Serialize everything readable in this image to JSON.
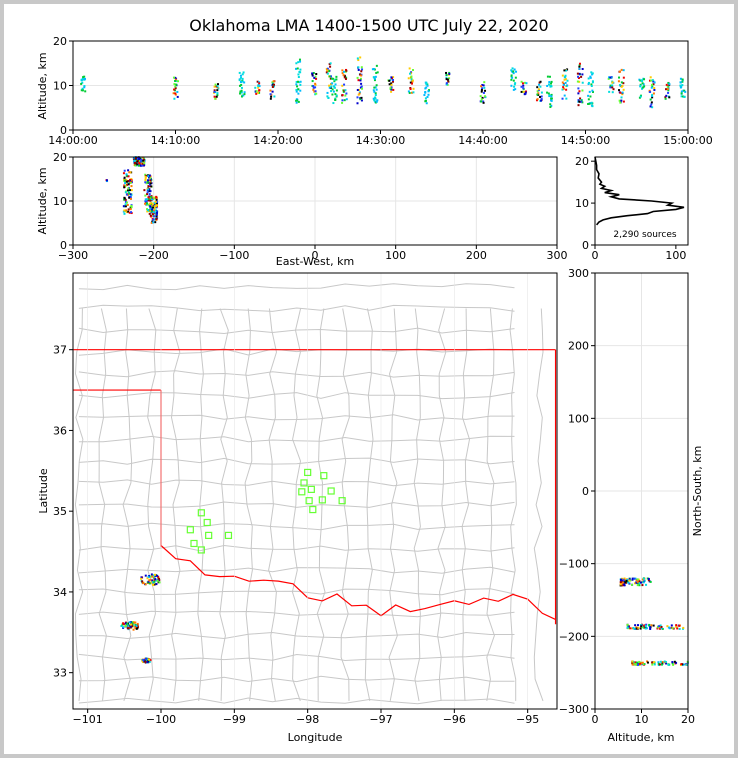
{
  "title": "Oklahoma LMA 1400-1500 UTC July 22, 2020",
  "colors": {
    "state_line": "#ff0000",
    "county_line": "#c8c8c8",
    "station": "#66ff33",
    "grid": "#e6e6e6"
  },
  "chart_data": [
    {
      "id": "time-height",
      "type": "scatter",
      "ylabel": "Altitude, km",
      "ylim": [
        0,
        20
      ],
      "yticks": [
        "0",
        "10",
        "20"
      ],
      "xlim_minutes": [
        0,
        60
      ],
      "xtick_labels": [
        "14:00:00",
        "14:10:00",
        "14:20:00",
        "14:30:00",
        "14:40:00",
        "14:50:00",
        "15:00:00"
      ],
      "note": "VHF sources, altitude (km) vs time (minutes after 14:00 UTC)",
      "clusters": [
        {
          "t": 1,
          "alt": [
            8,
            12
          ]
        },
        {
          "t": 10,
          "alt": [
            7,
            12
          ]
        },
        {
          "t": 14,
          "alt": [
            7,
            11
          ]
        },
        {
          "t": 16.5,
          "alt": [
            6,
            13
          ]
        },
        {
          "t": 18,
          "alt": [
            8,
            11
          ]
        },
        {
          "t": 19.5,
          "alt": [
            7,
            11
          ]
        },
        {
          "t": 22,
          "alt": [
            6,
            16
          ]
        },
        {
          "t": 23.5,
          "alt": [
            8,
            13
          ]
        },
        {
          "t": 25,
          "alt": [
            7,
            15
          ]
        },
        {
          "t": 25.5,
          "alt": [
            6,
            12
          ]
        },
        {
          "t": 26.5,
          "alt": [
            6,
            14
          ]
        },
        {
          "t": 28,
          "alt": [
            6,
            17
          ]
        },
        {
          "t": 29.5,
          "alt": [
            6,
            15
          ]
        },
        {
          "t": 31,
          "alt": [
            8,
            12
          ]
        },
        {
          "t": 33,
          "alt": [
            8,
            14
          ]
        },
        {
          "t": 34.5,
          "alt": [
            6,
            11
          ]
        },
        {
          "t": 36.5,
          "alt": [
            10,
            13
          ]
        },
        {
          "t": 40,
          "alt": [
            6,
            11
          ]
        },
        {
          "t": 43,
          "alt": [
            9,
            14
          ]
        },
        {
          "t": 44,
          "alt": [
            8,
            11
          ]
        },
        {
          "t": 45.5,
          "alt": [
            6,
            11
          ]
        },
        {
          "t": 46.5,
          "alt": [
            5,
            12
          ]
        },
        {
          "t": 48,
          "alt": [
            7,
            15
          ]
        },
        {
          "t": 49.5,
          "alt": [
            5,
            15
          ]
        },
        {
          "t": 50.5,
          "alt": [
            5,
            13
          ]
        },
        {
          "t": 52.5,
          "alt": [
            8,
            12
          ]
        },
        {
          "t": 53.5,
          "alt": [
            6,
            14
          ]
        },
        {
          "t": 55.5,
          "alt": [
            7,
            12
          ]
        },
        {
          "t": 56.5,
          "alt": [
            5,
            12
          ]
        },
        {
          "t": 58,
          "alt": [
            7,
            11
          ]
        },
        {
          "t": 59.5,
          "alt": [
            7,
            12
          ]
        }
      ]
    },
    {
      "id": "ew-height",
      "type": "scatter",
      "xlabel": "East-West, km",
      "ylabel": "Altitude, km",
      "xlim": [
        -300,
        300
      ],
      "ylim": [
        0,
        20
      ],
      "xticks": [
        "−300",
        "−200",
        "−100",
        "0",
        "100",
        "200",
        "300"
      ],
      "yticks": [
        "0",
        "10",
        "20"
      ],
      "clusters": [
        {
          "x": -232,
          "alt": [
            7,
            17
          ],
          "spread": 10
        },
        {
          "x": -207,
          "alt": [
            7,
            16
          ],
          "spread": 9
        },
        {
          "x": -200,
          "alt": [
            5,
            11
          ],
          "spread": 9
        },
        {
          "x": -258,
          "alt": [
            14.5,
            15
          ],
          "spread": 1
        },
        {
          "x": -218,
          "alt": [
            18,
            20
          ],
          "spread": 14
        }
      ]
    },
    {
      "id": "altitude-histogram",
      "type": "line",
      "annotation": "2,290 sources",
      "xlim": [
        0,
        115
      ],
      "ylim": [
        0,
        21
      ],
      "xticks": [
        "0",
        "100"
      ],
      "yticks": [
        "0",
        "10",
        "20"
      ],
      "profile": [
        {
          "alt": 4.8,
          "n": 2
        },
        {
          "alt": 5.5,
          "n": 5
        },
        {
          "alt": 6,
          "n": 10
        },
        {
          "alt": 6.5,
          "n": 20
        },
        {
          "alt": 7,
          "n": 40
        },
        {
          "alt": 7.5,
          "n": 65
        },
        {
          "alt": 8,
          "n": 72
        },
        {
          "alt": 8.5,
          "n": 100
        },
        {
          "alt": 9,
          "n": 110
        },
        {
          "alt": 9.5,
          "n": 90
        },
        {
          "alt": 10,
          "n": 95
        },
        {
          "alt": 10.5,
          "n": 70
        },
        {
          "alt": 11,
          "n": 30
        },
        {
          "alt": 11.5,
          "n": 20
        },
        {
          "alt": 12,
          "n": 30
        },
        {
          "alt": 12.5,
          "n": 12
        },
        {
          "alt": 13,
          "n": 20
        },
        {
          "alt": 13.5,
          "n": 8
        },
        {
          "alt": 14,
          "n": 12
        },
        {
          "alt": 14.5,
          "n": 6
        },
        {
          "alt": 15,
          "n": 8
        },
        {
          "alt": 16,
          "n": 4
        },
        {
          "alt": 17,
          "n": 5
        },
        {
          "alt": 18,
          "n": 2
        },
        {
          "alt": 19,
          "n": 2
        },
        {
          "alt": 20,
          "n": 1
        },
        {
          "alt": 21,
          "n": 0
        }
      ]
    },
    {
      "id": "plan-map",
      "type": "scatter",
      "xlabel": "Longitude",
      "ylabel": "Latitude",
      "xlim": [
        -101.2,
        -94.6
      ],
      "ylim": [
        32.55,
        37.95
      ],
      "xticks": [
        "−101",
        "−100",
        "−99",
        "−98",
        "−97",
        "−96",
        "−95"
      ],
      "yticks": [
        "33",
        "34",
        "35",
        "36",
        "37"
      ],
      "stations": [
        {
          "lon": -98.0,
          "lat": 35.48
        },
        {
          "lon": -97.78,
          "lat": 35.44
        },
        {
          "lon": -98.05,
          "lat": 35.35
        },
        {
          "lon": -97.95,
          "lat": 35.27
        },
        {
          "lon": -98.08,
          "lat": 35.24
        },
        {
          "lon": -97.68,
          "lat": 35.25
        },
        {
          "lon": -97.98,
          "lat": 35.13
        },
        {
          "lon": -97.8,
          "lat": 35.14
        },
        {
          "lon": -97.53,
          "lat": 35.13
        },
        {
          "lon": -97.93,
          "lat": 35.02
        },
        {
          "lon": -99.45,
          "lat": 34.98
        },
        {
          "lon": -99.37,
          "lat": 34.86
        },
        {
          "lon": -99.6,
          "lat": 34.77
        },
        {
          "lon": -99.35,
          "lat": 34.7
        },
        {
          "lon": -99.08,
          "lat": 34.7
        },
        {
          "lon": -99.55,
          "lat": 34.6
        },
        {
          "lon": -99.45,
          "lat": 34.52
        }
      ],
      "lightning_clusters": [
        {
          "lon": -100.15,
          "lat": 34.15,
          "radius": 0.1
        },
        {
          "lon": -100.42,
          "lat": 33.58,
          "radius": 0.08
        },
        {
          "lon": -100.2,
          "lat": 33.15,
          "radius": 0.04
        }
      ]
    },
    {
      "id": "ns-height",
      "type": "scatter",
      "xlabel": "Altitude, km",
      "ylabel": "North-South, km",
      "xlim": [
        0,
        20
      ],
      "ylim": [
        -300,
        300
      ],
      "xticks": [
        "0",
        "10",
        "20"
      ],
      "yticks": [
        "−300",
        "−200",
        "−100",
        "0",
        "100",
        "200",
        "300"
      ],
      "clusters": [
        {
          "ns": -125,
          "alt": [
            5.5,
            12
          ],
          "spread": 10
        },
        {
          "ns": -187,
          "alt": [
            7,
            19
          ],
          "spread": 6
        },
        {
          "ns": -237,
          "alt": [
            8,
            20
          ],
          "spread": 5
        }
      ]
    }
  ]
}
